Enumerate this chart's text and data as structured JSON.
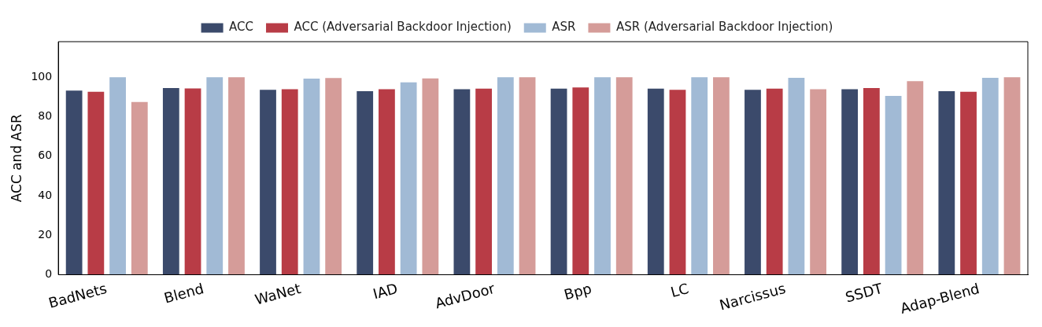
{
  "chart_data": {
    "type": "bar",
    "ylabel": "ACC and ASR",
    "categories": [
      "BadNets",
      "Blend",
      "WaNet",
      "IAD",
      "AdvDoor",
      "Bpp",
      "LC",
      "Narcissus",
      "SSDT",
      "Adap-Blend"
    ],
    "series": [
      {
        "name": "ACC",
        "color": "#3b4a6b",
        "values": [
          93.2,
          94.5,
          93.6,
          92.9,
          93.9,
          94.2,
          94.2,
          93.6,
          93.9,
          92.9
        ]
      },
      {
        "name": "ACC (Adversarial Backdoor Injection)",
        "color": "#b83c46",
        "values": [
          92.6,
          94.3,
          93.9,
          93.9,
          94.2,
          94.8,
          93.6,
          94.2,
          94.5,
          92.6
        ]
      },
      {
        "name": "ASR",
        "color": "#a1bad5",
        "values": [
          100,
          100,
          99.3,
          97.4,
          100,
          100,
          100,
          99.7,
          90.5,
          99.7
        ]
      },
      {
        "name": "ASR (Adversarial Backdoor Injection)",
        "color": "#d59c99",
        "values": [
          87.5,
          100,
          99.6,
          99.4,
          100,
          100,
          100,
          93.9,
          98.0,
          100
        ]
      }
    ],
    "ylim": [
      0,
      118
    ],
    "yticks": [
      0,
      20,
      40,
      60,
      80,
      100
    ],
    "grid": false,
    "legend": "top"
  }
}
